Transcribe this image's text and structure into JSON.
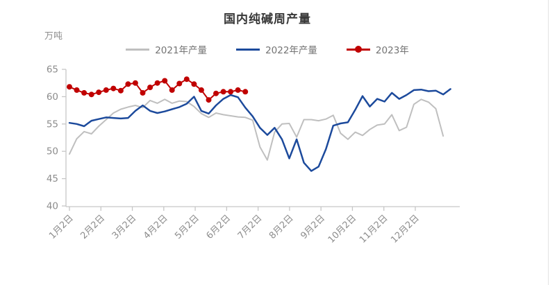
{
  "page": {
    "background": "#ffffff",
    "right_rule_color": "#e3e3e3"
  },
  "chart_data": {
    "type": "line",
    "title": "国内纯碱周产量",
    "unit_label": "万吨",
    "xlabel": "",
    "ylabel": "万吨",
    "ylim": [
      40,
      65
    ],
    "y_ticks": [
      40,
      45,
      50,
      55,
      60,
      65
    ],
    "x_tick_labels": [
      "1月2日",
      "2月2日",
      "3月2日",
      "4月2日",
      "5月2日",
      "6月2日",
      "7月2日",
      "8月2日",
      "9月2日",
      "10月2日",
      "11月2日",
      "12月2日"
    ],
    "grid": false,
    "legend_position": "top",
    "axis_color": "#c6c6c6",
    "tick_text_color": "#8c8c8c",
    "series": [
      {
        "name": "2021年产量",
        "color": "#bfbfbf",
        "marker": "none",
        "line_width": 2,
        "values": [
          49.5,
          52.3,
          53.6,
          53.2,
          54.6,
          55.8,
          57.0,
          57.7,
          58.1,
          58.4,
          58.0,
          59.3,
          58.8,
          59.5,
          58.8,
          59.2,
          59.1,
          58.2,
          56.9,
          56.2,
          57.0,
          56.7,
          56.5,
          56.3,
          56.2,
          55.7,
          50.8,
          48.4,
          53.5,
          55.0,
          55.1,
          52.6,
          55.8,
          55.8,
          55.6,
          55.9,
          56.6,
          53.3,
          52.2,
          53.5,
          52.9,
          54.0,
          54.8,
          55.0,
          56.7,
          53.8,
          54.4,
          58.6,
          59.5,
          59.0,
          57.8,
          52.8
        ]
      },
      {
        "name": "2022年产量",
        "color": "#1c4a9c",
        "marker": "none",
        "line_width": 2.5,
        "values": [
          55.2,
          55.0,
          54.6,
          55.6,
          55.9,
          56.2,
          56.1,
          56.0,
          56.1,
          57.4,
          58.4,
          57.4,
          57.0,
          57.3,
          57.7,
          58.1,
          58.7,
          60.0,
          57.4,
          56.9,
          58.4,
          59.6,
          60.3,
          59.9,
          58.0,
          56.4,
          54.3,
          53.0,
          54.3,
          52.2,
          48.7,
          52.2,
          47.9,
          46.4,
          47.2,
          50.4,
          54.7,
          55.1,
          55.3,
          57.6,
          60.1,
          58.2,
          59.6,
          59.1,
          60.7,
          59.6,
          60.3,
          61.2,
          61.3,
          61.0,
          61.1,
          60.4,
          61.4
        ]
      },
      {
        "name": "2023年",
        "color": "#c00000",
        "marker": "circle",
        "marker_radius": 4,
        "line_width": 2,
        "values": [
          61.8,
          61.2,
          60.7,
          60.4,
          60.8,
          61.2,
          61.5,
          61.1,
          62.3,
          62.5,
          60.7,
          61.7,
          62.5,
          62.9,
          61.2,
          62.4,
          63.2,
          62.3,
          61.2,
          59.4,
          60.6,
          60.9,
          60.9,
          61.2,
          60.9
        ]
      }
    ]
  }
}
